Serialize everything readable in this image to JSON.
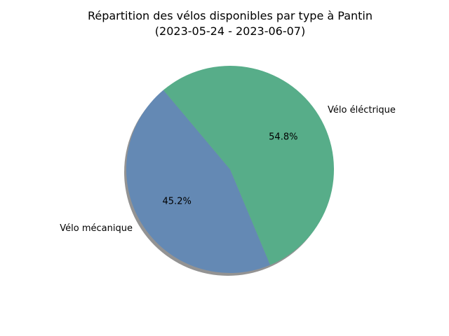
{
  "chart_data": {
    "type": "pie",
    "title_line1": "Répartition des vélos disponibles par type à Pantin",
    "title_line2": "(2023-05-24 - 2023-06-07)",
    "slices": [
      {
        "label": "Vélo mécanique",
        "value": 45.2,
        "pct_label": "45.2%",
        "color": "#6489b4"
      },
      {
        "label": "Vélo éléctrique",
        "value": 54.8,
        "pct_label": "54.8%",
        "color": "#57ad89"
      }
    ],
    "start_angle_deg": 130,
    "direction": "counterclockwise",
    "shadow": true,
    "legend": "none"
  }
}
